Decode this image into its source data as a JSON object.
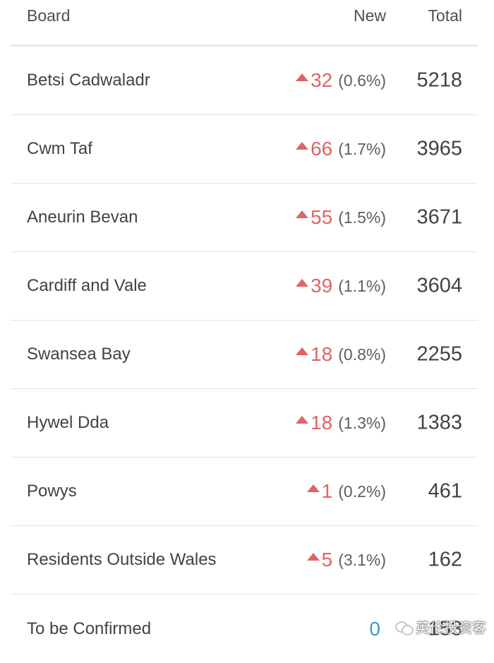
{
  "header": {
    "board": "Board",
    "new": "New",
    "total": "Total"
  },
  "rows": [
    {
      "board": "Betsi Cadwaladr",
      "new_count": "32",
      "new_pct": "(0.6%)",
      "total": "5218"
    },
    {
      "board": "Cwm Taf",
      "new_count": "66",
      "new_pct": "(1.7%)",
      "total": "3965"
    },
    {
      "board": "Aneurin Bevan",
      "new_count": "55",
      "new_pct": "(1.5%)",
      "total": "3671"
    },
    {
      "board": "Cardiff and Vale",
      "new_count": "39",
      "new_pct": "(1.1%)",
      "total": "3604"
    },
    {
      "board": "Swansea Bay",
      "new_count": "18",
      "new_pct": "(0.8%)",
      "total": "2255"
    },
    {
      "board": "Hywel Dda",
      "new_count": "18",
      "new_pct": "(1.3%)",
      "total": "1383"
    },
    {
      "board": "Powys",
      "new_count": "1",
      "new_pct": "(0.2%)",
      "total": "461"
    },
    {
      "board": "Residents Outside Wales",
      "new_count": "5",
      "new_pct": "(3.1%)",
      "total": "162"
    },
    {
      "board": "To be Confirmed",
      "new_count": "0",
      "new_pct": "",
      "total": "153"
    }
  ],
  "watermark": {
    "text": "英伦投资客",
    "icon": "wechat-icon"
  },
  "colors": {
    "increase": "#e06464",
    "zero": "#3b97d3",
    "text": "#3f4348",
    "divider": "#e3e4e6"
  }
}
